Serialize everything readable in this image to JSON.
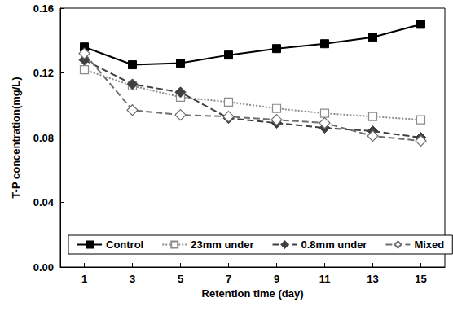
{
  "chart_data": {
    "type": "line",
    "x_label": "Retention time (day)",
    "y_label": "T-P concentration(mg/L)",
    "categories": [
      1,
      3,
      5,
      7,
      9,
      11,
      13,
      15
    ],
    "ylim": [
      0,
      0.16
    ],
    "yticks": [
      {
        "value": 0,
        "label": "0.00"
      },
      0.04,
      0.08,
      0.12,
      0.16
    ],
    "grid": false,
    "legend": "bottom",
    "series": [
      {
        "name": "Control",
        "color": "#000000",
        "marker": "square",
        "line_style": "solid",
        "values": [
          0.136,
          0.125,
          0.126,
          0.131,
          0.135,
          0.138,
          0.142,
          0.15
        ]
      },
      {
        "name": "23mm under",
        "color": "#8c8c8c",
        "marker": "square_open",
        "line_style": "dotted",
        "values": [
          0.122,
          0.112,
          0.105,
          0.102,
          0.098,
          0.095,
          0.093,
          0.091
        ]
      },
      {
        "name": "0.8mm under",
        "color": "#404040",
        "marker": "diamond",
        "line_style": "dashed",
        "values": [
          0.128,
          0.113,
          0.108,
          0.092,
          0.089,
          0.086,
          0.084,
          0.08
        ]
      },
      {
        "name": "Mixed",
        "color": "#6e6e6e",
        "marker": "diamond_open",
        "line_style": "dashed",
        "values": [
          0.132,
          0.097,
          0.094,
          0.093,
          0.091,
          0.089,
          0.081,
          0.078
        ]
      }
    ]
  }
}
